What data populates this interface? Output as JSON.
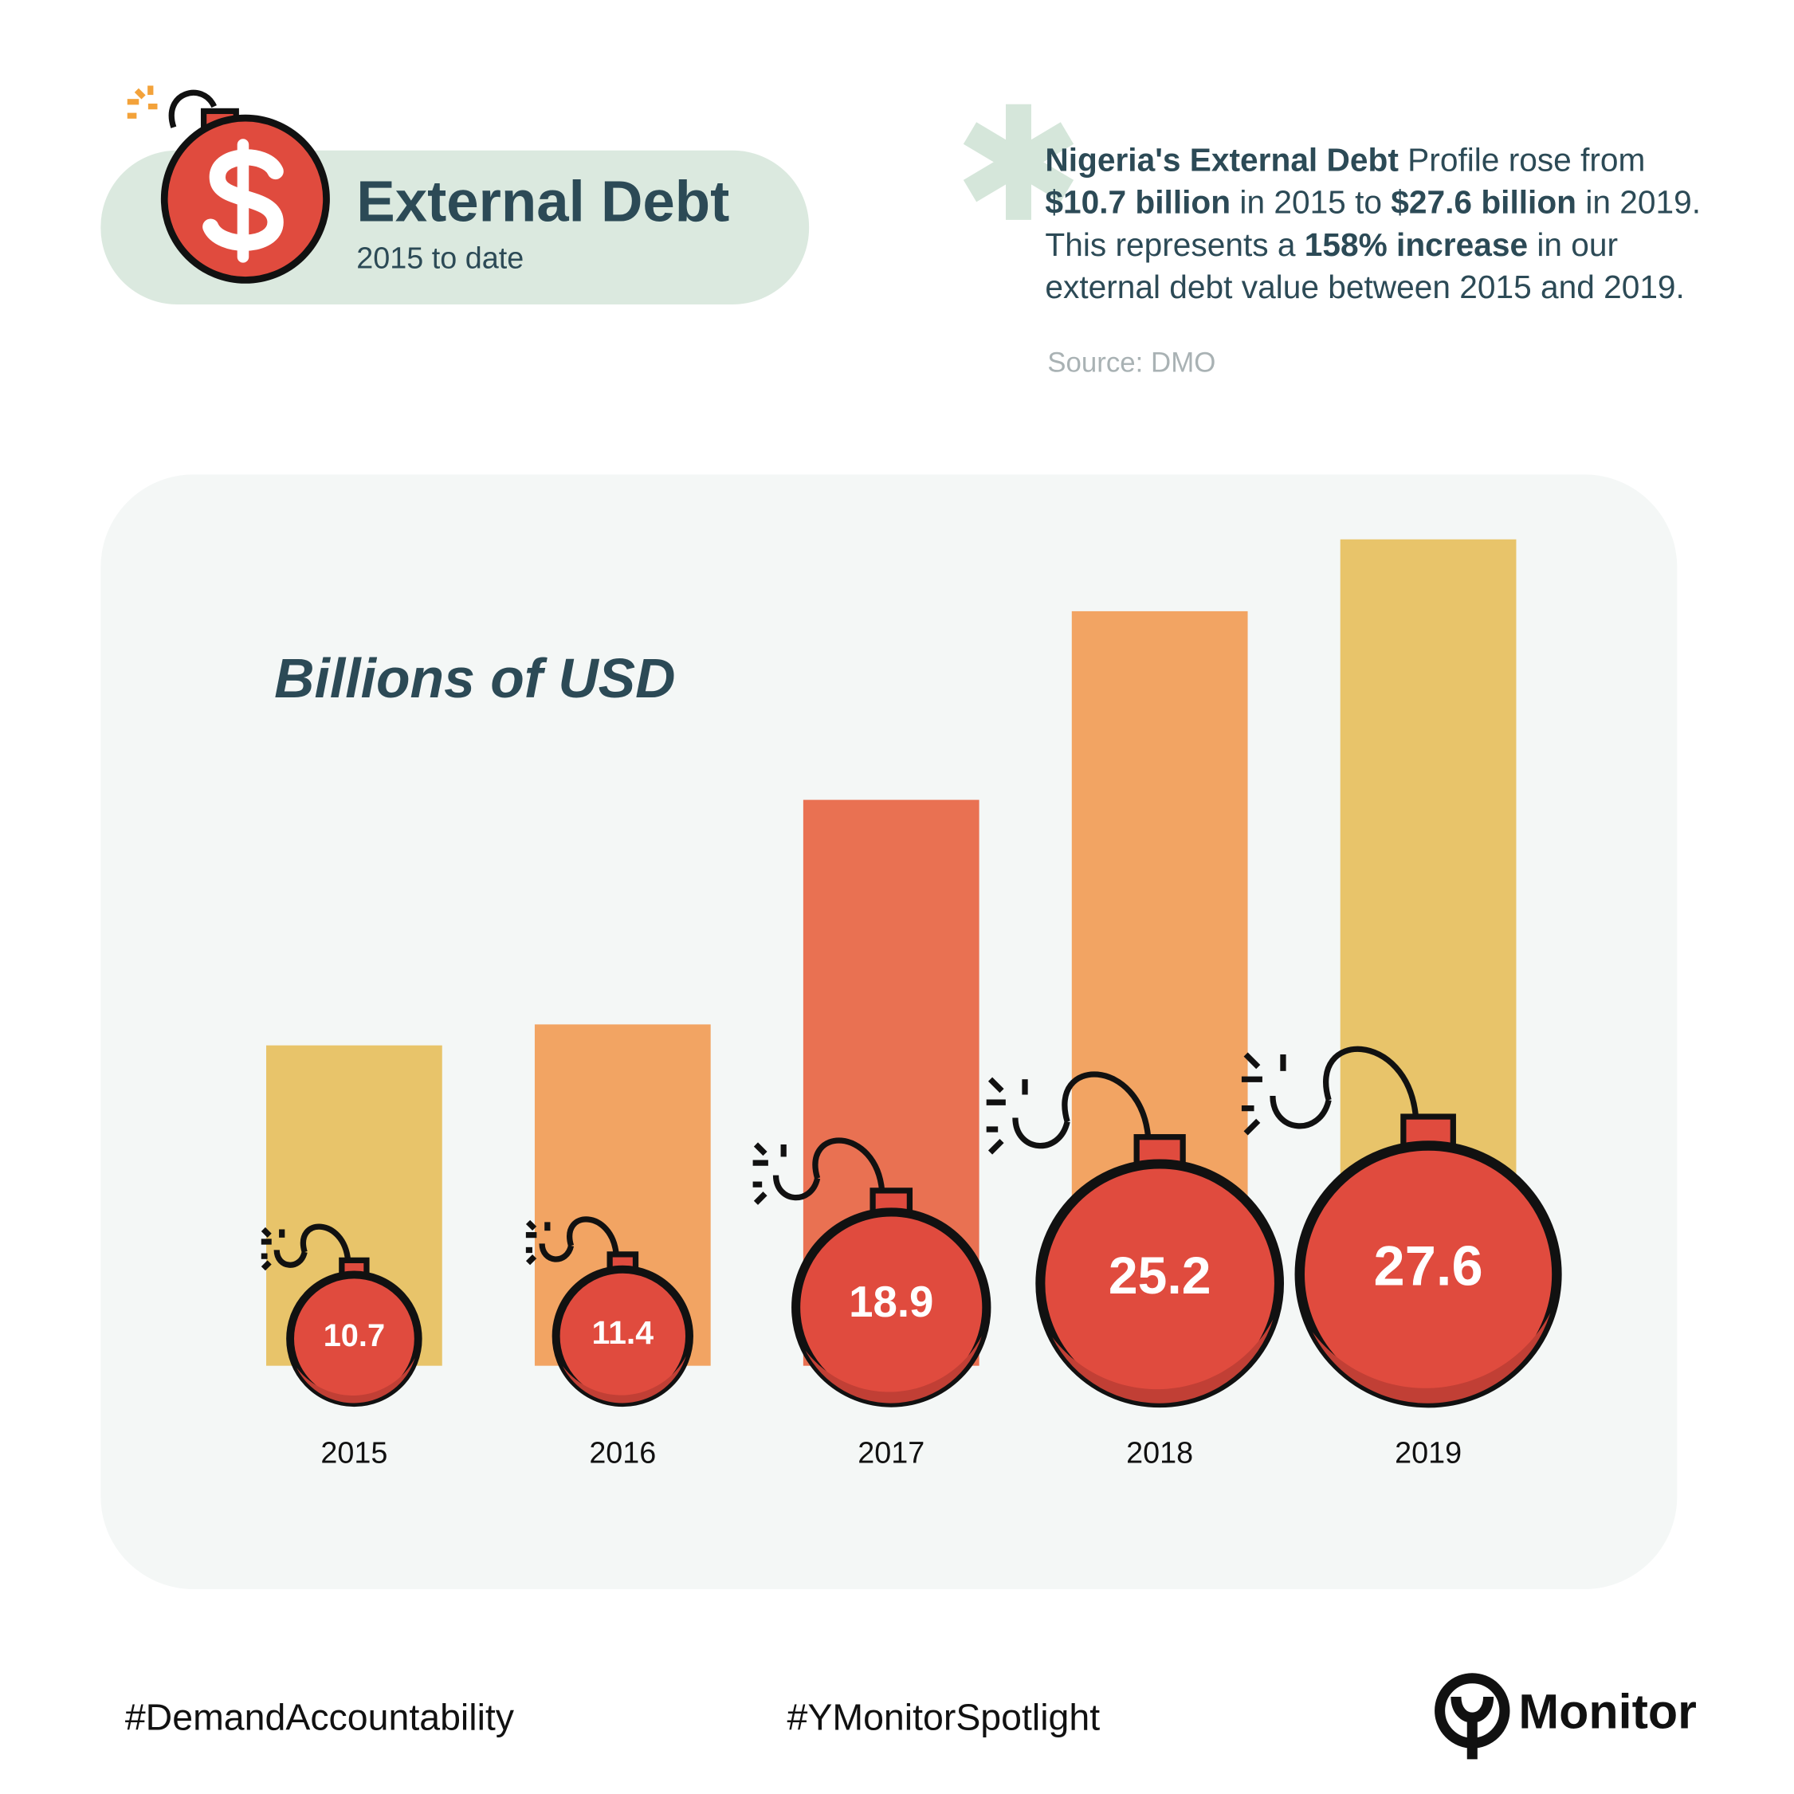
{
  "chart_data": {
    "type": "bar",
    "title": "External Debt",
    "subtitle": "2015 to date",
    "description": [
      [
        {
          "text": "Nigeria's External Debt",
          "bold": true
        },
        {
          "text": " Profile rose from",
          "bold": false
        }
      ],
      [
        {
          "text": "$10.7 billion",
          "bold": true
        },
        {
          "text": " in 2015 to ",
          "bold": false
        },
        {
          "text": "$27.6 billion",
          "bold": true
        },
        {
          "text": " in 2019.",
          "bold": false
        }
      ],
      [
        {
          "text": "This represents a ",
          "bold": false
        },
        {
          "text": "158% increase",
          "bold": true
        },
        {
          "text": " in our",
          "bold": false
        }
      ],
      [
        {
          "text": "external debt value between 2015 and 2019.",
          "bold": false
        }
      ]
    ],
    "source": "Source: DMO",
    "y_label": "Billions of USD",
    "categories": [
      "2015",
      "2016",
      "2017",
      "2018",
      "2019"
    ],
    "values": [
      10.7,
      11.4,
      18.9,
      25.2,
      27.6
    ],
    "colors": [
      "#e8c46a",
      "#f2a463",
      "#e97152",
      "#f2a463",
      "#e8c46a"
    ],
    "footer": {
      "hashtags": [
        "#DemandAccountability",
        "#YMonitorSpotlight"
      ],
      "logo": "Monitor"
    }
  }
}
